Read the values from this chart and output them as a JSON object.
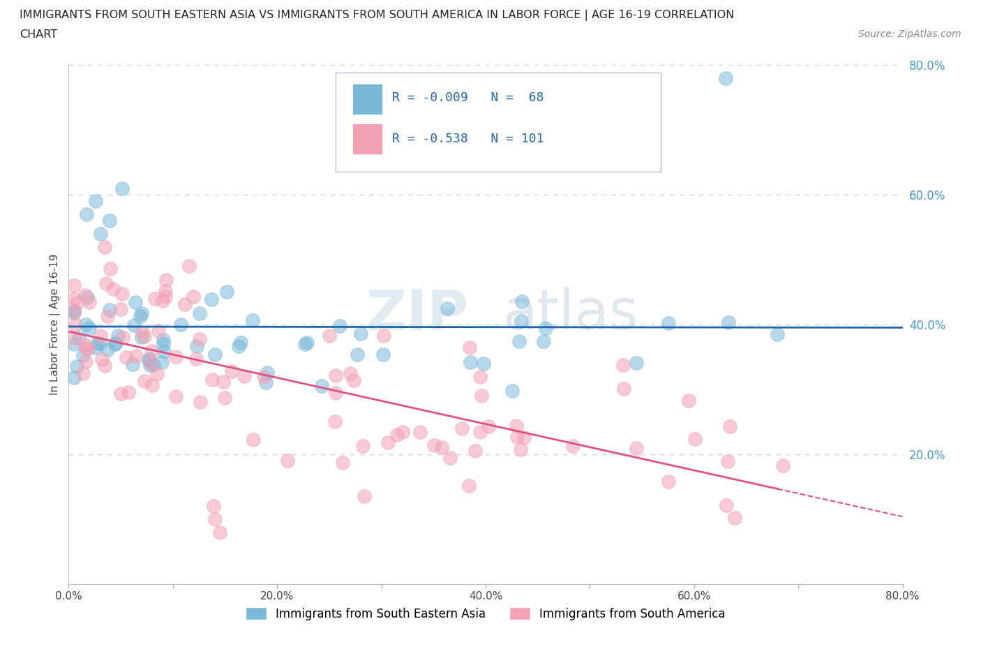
{
  "title_line1": "IMMIGRANTS FROM SOUTH EASTERN ASIA VS IMMIGRANTS FROM SOUTH AMERICA IN LABOR FORCE | AGE 16-19 CORRELATION",
  "title_line2": "CHART",
  "source_text": "Source: ZipAtlas.com",
  "ylabel": "In Labor Force | Age 16-19",
  "xlim": [
    0.0,
    0.8
  ],
  "ylim": [
    0.0,
    0.8
  ],
  "xtick_labels": [
    "0.0%",
    "",
    "20.0%",
    "",
    "40.0%",
    "",
    "60.0%",
    "",
    "80.0%"
  ],
  "xtick_vals": [
    0.0,
    0.1,
    0.2,
    0.3,
    0.4,
    0.5,
    0.6,
    0.7,
    0.8
  ],
  "ytick_labels": [
    "20.0%",
    "40.0%",
    "60.0%",
    "80.0%"
  ],
  "ytick_vals": [
    0.2,
    0.4,
    0.6,
    0.8
  ],
  "watermark_zip": "ZIP",
  "watermark_atlas": "atlas",
  "color_blue": "#7ab8d9",
  "color_pink": "#f4a0b5",
  "trendline1_color": "#2166ac",
  "trendline2_color": "#e05080",
  "grid_color": "#c8d8e8",
  "label1": "Immigrants from South Eastern Asia",
  "label2": "Immigrants from South America",
  "title_color": "#222222",
  "ytick_color": "#4499cc",
  "source_color": "#888888"
}
